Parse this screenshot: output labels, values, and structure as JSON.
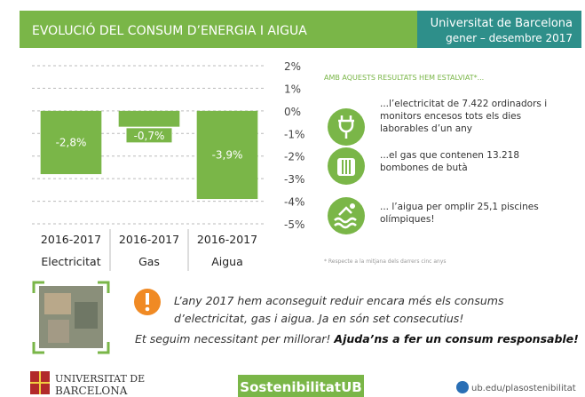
{
  "header": {
    "title": "EVOLUCIÓ DEL CONSUM D’ENERGIA I AIGUA",
    "org": "Universitat de Barcelona",
    "period": "gener – desembre 2017"
  },
  "chart_data": {
    "type": "bar",
    "periods": [
      "2016-2017",
      "2016-2017",
      "2016-2017"
    ],
    "categories": [
      "Electricitat",
      "Gas",
      "Aigua"
    ],
    "values": [
      -2.8,
      -0.7,
      -3.9
    ],
    "value_labels": [
      "-2,8%",
      "-0,7%",
      "-3,9%"
    ],
    "color": "#7ab648",
    "ylim": [
      -5,
      2
    ],
    "yticks": [
      {
        "value": 2,
        "label": "2%"
      },
      {
        "value": 1,
        "label": "1%"
      },
      {
        "value": 0,
        "label": "0%"
      },
      {
        "value": -1,
        "label": "-1%"
      },
      {
        "value": -2,
        "label": "-2%"
      },
      {
        "value": -3,
        "label": "-3%"
      },
      {
        "value": -4,
        "label": "-4%"
      },
      {
        "value": -5,
        "label": "-5%"
      }
    ],
    "grid": true
  },
  "savings": {
    "heading": "AMB AQUESTS RESULTATS HEM ESTALVIAT*...",
    "items": [
      [
        "...l’electricitat de 7.422 ordinadors i",
        "monitors encesos tots els dies",
        "laborables d’un any"
      ],
      [
        "...el gas que contenen 13.218",
        "bombones de butà"
      ],
      [
        "... l’aigua per omplir 25,1 piscines",
        "olímpiques!"
      ]
    ],
    "footnote": "* Respecte a la mitjana dels darrers cinc anys"
  },
  "message": {
    "lines": [
      "L’any 2017 hem aconseguit reduir encara més els consums",
      "d’electricitat, gas i aigua. Ja en són set consecutius!"
    ],
    "plain": "Et seguim necessitant per millorar! ",
    "bold": "Ajuda’ns a fer un consum responsable!"
  },
  "footer": {
    "logo_line1": "UNIVERSITAT DE",
    "logo_line2": "BARCELONA",
    "brand": "SostenibilitatUB",
    "url": "ub.edu/plasostenibilitat"
  }
}
